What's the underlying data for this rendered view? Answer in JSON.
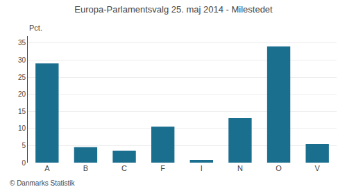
{
  "chart_data": {
    "type": "bar",
    "title": "Europa-Parlamentsvalg 25. maj 2014 - Milestedet",
    "ylabel": "Pct.",
    "annotations": [
      "© Danmarks Statistik"
    ],
    "categories": [
      "A",
      "B",
      "C",
      "F",
      "I",
      "N",
      "O",
      "V"
    ],
    "values": [
      29.0,
      4.5,
      3.5,
      10.5,
      0.8,
      13.0,
      34.0,
      5.5
    ],
    "color": "#1a6e8e",
    "ylim": [
      0,
      37
    ],
    "yticks": [
      0,
      5,
      10,
      15,
      20,
      25,
      30,
      35
    ],
    "grid": true
  }
}
